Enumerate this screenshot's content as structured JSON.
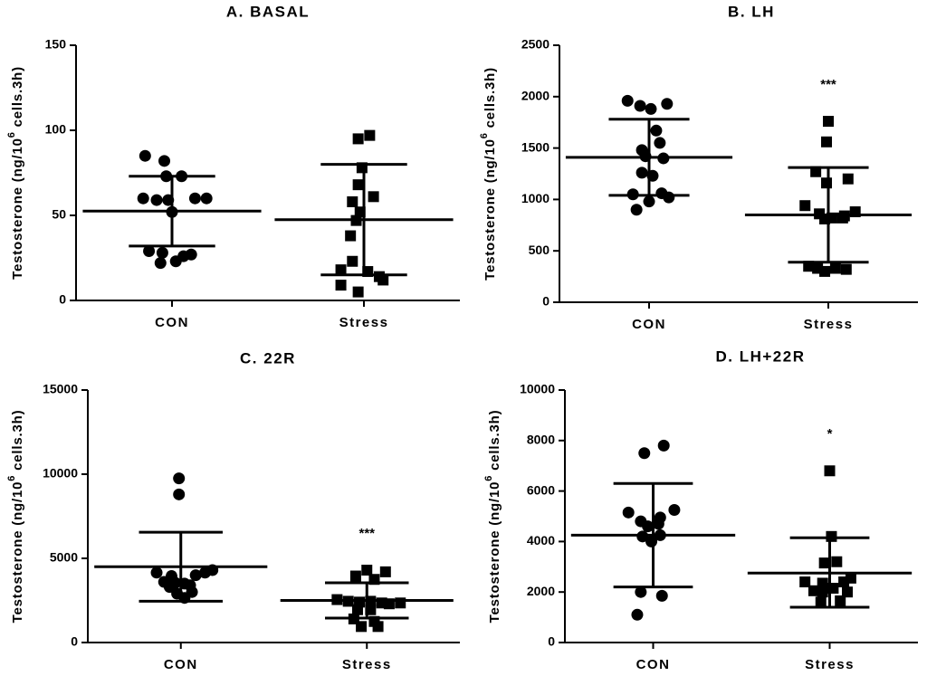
{
  "chart_data": [
    {
      "type": "scatter",
      "title": "A. BASAL",
      "ylabel_main": "Testosterone (ng/10",
      "ylabel_sup": "6",
      "ylabel_rest": " cells.3h)",
      "ylim": [
        0,
        150
      ],
      "yticks": [
        "0",
        "50",
        "100",
        "150"
      ],
      "categories": [
        "CON",
        "Stress"
      ],
      "groups": [
        {
          "name": "CON",
          "marker": "circle",
          "significance": "",
          "mean": 52.5,
          "error": [
            32,
            73
          ],
          "points": [
            {
              "x": -0.14,
              "y": 85
            },
            {
              "x": -0.04,
              "y": 82
            },
            {
              "x": -0.03,
              "y": 73
            },
            {
              "x": 0.05,
              "y": 73
            },
            {
              "x": -0.15,
              "y": 60
            },
            {
              "x": -0.08,
              "y": 59
            },
            {
              "x": -0.02,
              "y": 59
            },
            {
              "x": 0.12,
              "y": 60
            },
            {
              "x": 0.18,
              "y": 60
            },
            {
              "x": 0.0,
              "y": 52
            },
            {
              "x": -0.12,
              "y": 29
            },
            {
              "x": -0.05,
              "y": 28
            },
            {
              "x": 0.1,
              "y": 27
            },
            {
              "x": 0.06,
              "y": 26
            },
            {
              "x": 0.02,
              "y": 23
            },
            {
              "x": -0.06,
              "y": 22
            }
          ]
        },
        {
          "name": "Stress",
          "marker": "square",
          "significance": "",
          "mean": 47.5,
          "error": [
            15,
            80
          ],
          "points": [
            {
              "x": -0.03,
              "y": 95
            },
            {
              "x": 0.03,
              "y": 97
            },
            {
              "x": -0.01,
              "y": 78
            },
            {
              "x": -0.03,
              "y": 68
            },
            {
              "x": 0.05,
              "y": 61
            },
            {
              "x": -0.06,
              "y": 58
            },
            {
              "x": -0.02,
              "y": 52
            },
            {
              "x": -0.04,
              "y": 47
            },
            {
              "x": -0.07,
              "y": 38
            },
            {
              "x": -0.06,
              "y": 23
            },
            {
              "x": -0.12,
              "y": 18
            },
            {
              "x": 0.02,
              "y": 17
            },
            {
              "x": 0.08,
              "y": 14
            },
            {
              "x": -0.12,
              "y": 9
            },
            {
              "x": 0.1,
              "y": 12
            },
            {
              "x": -0.03,
              "y": 5
            }
          ]
        }
      ]
    },
    {
      "type": "scatter",
      "title": "B. LH",
      "ylabel_main": "Testosterone (ng/10",
      "ylabel_sup": "6",
      "ylabel_rest": " cells.3h)",
      "ylim": [
        0,
        2500
      ],
      "yticks": [
        "0",
        "500",
        "1000",
        "1500",
        "2000",
        "2500"
      ],
      "categories": [
        "CON",
        "Stress"
      ],
      "groups": [
        {
          "name": "CON",
          "marker": "circle",
          "significance": "",
          "mean": 1410,
          "error": [
            1040,
            1780
          ],
          "points": [
            {
              "x": -0.12,
              "y": 1960
            },
            {
              "x": -0.05,
              "y": 1910
            },
            {
              "x": 0.01,
              "y": 1880
            },
            {
              "x": 0.1,
              "y": 1930
            },
            {
              "x": 0.04,
              "y": 1670
            },
            {
              "x": 0.06,
              "y": 1550
            },
            {
              "x": -0.04,
              "y": 1480
            },
            {
              "x": -0.02,
              "y": 1420
            },
            {
              "x": 0.08,
              "y": 1400
            },
            {
              "x": -0.04,
              "y": 1260
            },
            {
              "x": 0.02,
              "y": 1230
            },
            {
              "x": 0.07,
              "y": 1060
            },
            {
              "x": -0.09,
              "y": 1050
            },
            {
              "x": 0.11,
              "y": 1020
            },
            {
              "x": 0.0,
              "y": 980
            },
            {
              "x": -0.07,
              "y": 900
            }
          ]
        },
        {
          "name": "Stress",
          "marker": "square",
          "significance": "***",
          "mean": 850,
          "error": [
            390,
            1310
          ],
          "points": [
            {
              "x": 0.0,
              "y": 1760
            },
            {
              "x": -0.01,
              "y": 1560
            },
            {
              "x": -0.07,
              "y": 1270
            },
            {
              "x": 0.11,
              "y": 1200
            },
            {
              "x": -0.01,
              "y": 1160
            },
            {
              "x": -0.13,
              "y": 940
            },
            {
              "x": 0.15,
              "y": 880
            },
            {
              "x": -0.05,
              "y": 860
            },
            {
              "x": 0.09,
              "y": 840
            },
            {
              "x": 0.02,
              "y": 820
            },
            {
              "x": 0.08,
              "y": 820
            },
            {
              "x": -0.02,
              "y": 810
            },
            {
              "x": -0.11,
              "y": 350
            },
            {
              "x": -0.06,
              "y": 330
            },
            {
              "x": 0.04,
              "y": 330
            },
            {
              "x": 0.1,
              "y": 320
            },
            {
              "x": -0.02,
              "y": 300
            }
          ]
        }
      ]
    },
    {
      "type": "scatter",
      "title": "C. 22R",
      "ylabel_main": "Testosterone (ng/10",
      "ylabel_sup": "6",
      "ylabel_rest": " cells.3h)",
      "ylim": [
        0,
        15000
      ],
      "yticks": [
        "0",
        "5000",
        "10000",
        "15000"
      ],
      "categories": [
        "CON",
        "Stress"
      ],
      "groups": [
        {
          "name": "CON",
          "marker": "circle",
          "significance": "",
          "mean": 4500,
          "error": [
            2450,
            6550
          ],
          "points": [
            {
              "x": -0.01,
              "y": 9750
            },
            {
              "x": -0.01,
              "y": 8800
            },
            {
              "x": -0.13,
              "y": 4150
            },
            {
              "x": -0.05,
              "y": 3950
            },
            {
              "x": 0.08,
              "y": 4000
            },
            {
              "x": 0.13,
              "y": 4150
            },
            {
              "x": 0.17,
              "y": 4300
            },
            {
              "x": -0.09,
              "y": 3600
            },
            {
              "x": -0.03,
              "y": 3550
            },
            {
              "x": 0.02,
              "y": 3500
            },
            {
              "x": 0.05,
              "y": 3400
            },
            {
              "x": 0.06,
              "y": 3000
            },
            {
              "x": -0.06,
              "y": 3300
            },
            {
              "x": -0.02,
              "y": 2900
            },
            {
              "x": 0.02,
              "y": 2650
            }
          ]
        },
        {
          "name": "Stress",
          "marker": "square",
          "significance": "***",
          "mean": 2500,
          "error": [
            1450,
            3550
          ],
          "points": [
            {
              "x": 0.0,
              "y": 4300
            },
            {
              "x": 0.1,
              "y": 4200
            },
            {
              "x": -0.06,
              "y": 3950
            },
            {
              "x": 0.04,
              "y": 3750
            },
            {
              "x": -0.16,
              "y": 2550
            },
            {
              "x": -0.1,
              "y": 2450
            },
            {
              "x": -0.04,
              "y": 2400
            },
            {
              "x": 0.02,
              "y": 2450
            },
            {
              "x": 0.08,
              "y": 2350
            },
            {
              "x": 0.12,
              "y": 2300
            },
            {
              "x": 0.18,
              "y": 2350
            },
            {
              "x": -0.05,
              "y": 1950
            },
            {
              "x": 0.02,
              "y": 1950
            },
            {
              "x": -0.07,
              "y": 1400
            },
            {
              "x": 0.04,
              "y": 1250
            },
            {
              "x": -0.03,
              "y": 950
            },
            {
              "x": 0.06,
              "y": 950
            }
          ]
        }
      ]
    },
    {
      "type": "scatter",
      "title": "D. LH+22R",
      "ylabel_main": "Testosterone (ng/10",
      "ylabel_sup": "6",
      "ylabel_rest": " cells.3h)",
      "ylim": [
        0,
        10000
      ],
      "yticks": [
        "0",
        "2000",
        "4000",
        "6000",
        "8000",
        "10000"
      ],
      "categories": [
        "CON",
        "Stress"
      ],
      "groups": [
        {
          "name": "CON",
          "marker": "circle",
          "significance": "",
          "mean": 4250,
          "error": [
            2200,
            6300
          ],
          "points": [
            {
              "x": 0.06,
              "y": 7800
            },
            {
              "x": -0.05,
              "y": 7500
            },
            {
              "x": -0.14,
              "y": 5150
            },
            {
              "x": 0.04,
              "y": 4950
            },
            {
              "x": 0.12,
              "y": 5250
            },
            {
              "x": -0.07,
              "y": 4800
            },
            {
              "x": -0.03,
              "y": 4600
            },
            {
              "x": 0.03,
              "y": 4700
            },
            {
              "x": -0.06,
              "y": 4200
            },
            {
              "x": 0.04,
              "y": 4250
            },
            {
              "x": -0.01,
              "y": 4000
            },
            {
              "x": -0.07,
              "y": 2000
            },
            {
              "x": 0.05,
              "y": 1850
            },
            {
              "x": -0.09,
              "y": 1100
            }
          ]
        },
        {
          "name": "Stress",
          "marker": "square",
          "significance": "*",
          "mean": 2750,
          "error": [
            1400,
            4150
          ],
          "points": [
            {
              "x": 0.0,
              "y": 6800
            },
            {
              "x": 0.01,
              "y": 4200
            },
            {
              "x": -0.03,
              "y": 3150
            },
            {
              "x": 0.04,
              "y": 3200
            },
            {
              "x": -0.14,
              "y": 2400
            },
            {
              "x": -0.04,
              "y": 2350
            },
            {
              "x": 0.08,
              "y": 2400
            },
            {
              "x": 0.12,
              "y": 2550
            },
            {
              "x": -0.09,
              "y": 2050
            },
            {
              "x": -0.04,
              "y": 2000
            },
            {
              "x": 0.02,
              "y": 2150
            },
            {
              "x": -0.05,
              "y": 1600
            },
            {
              "x": 0.06,
              "y": 1650
            },
            {
              "x": 0.1,
              "y": 2000
            }
          ]
        }
      ]
    }
  ]
}
